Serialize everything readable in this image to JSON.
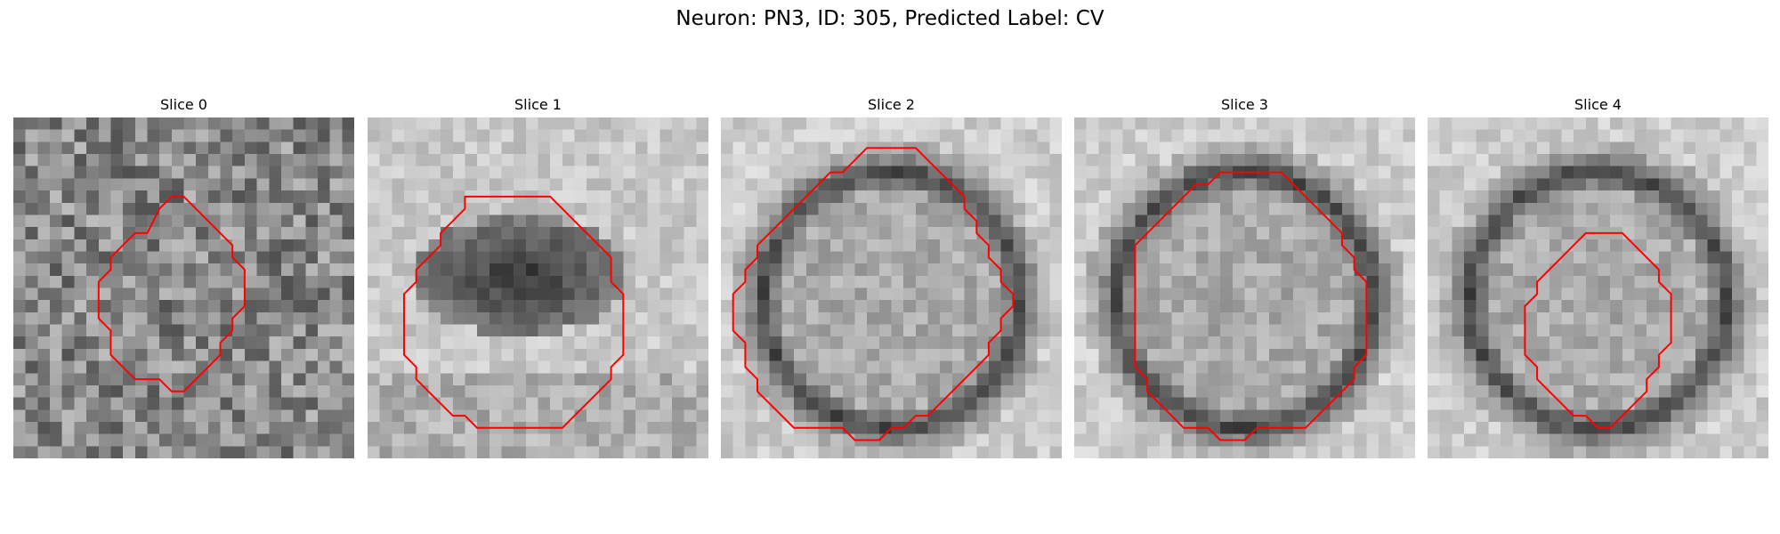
{
  "figure": {
    "title": "Neuron: PN3, ID: 305, Predicted Label: CV"
  },
  "panels": [
    {
      "title": "Slice 0",
      "seed": 11,
      "pattern": "noise",
      "contour": [
        [
          12.5,
          6
        ],
        [
          13.5,
          6
        ],
        [
          14.5,
          7
        ],
        [
          15.5,
          8
        ],
        [
          16.5,
          9
        ],
        [
          17.5,
          10
        ],
        [
          17.5,
          11
        ],
        [
          18.5,
          12
        ],
        [
          18.5,
          13
        ],
        [
          18.5,
          14
        ],
        [
          18.5,
          15
        ],
        [
          17.5,
          16
        ],
        [
          17.5,
          17
        ],
        [
          16.5,
          18
        ],
        [
          16.5,
          19
        ],
        [
          15.5,
          20
        ],
        [
          14.5,
          21
        ],
        [
          13.5,
          22
        ],
        [
          12.5,
          22
        ],
        [
          11.5,
          21
        ],
        [
          10.5,
          21
        ],
        [
          9.5,
          21
        ],
        [
          8.5,
          20
        ],
        [
          7.5,
          19
        ],
        [
          7.5,
          18
        ],
        [
          7.5,
          17
        ],
        [
          6.5,
          16
        ],
        [
          6.5,
          15
        ],
        [
          6.5,
          14
        ],
        [
          6.5,
          13
        ],
        [
          7.5,
          12
        ],
        [
          7.5,
          11
        ],
        [
          8.5,
          10
        ],
        [
          9.5,
          9
        ],
        [
          10.5,
          9
        ],
        [
          11.5,
          7
        ]
      ]
    },
    {
      "title": "Slice 1",
      "seed": 23,
      "pattern": "blob",
      "contour": [
        [
          7.5,
          6
        ],
        [
          14.5,
          6
        ],
        [
          15.5,
          7
        ],
        [
          16.5,
          8
        ],
        [
          17.5,
          9
        ],
        [
          18.5,
          10
        ],
        [
          19.5,
          11
        ],
        [
          19.5,
          12
        ],
        [
          19.5,
          13
        ],
        [
          20.5,
          14
        ],
        [
          20.5,
          15
        ],
        [
          20.5,
          16
        ],
        [
          20.5,
          17
        ],
        [
          20.5,
          18
        ],
        [
          20.5,
          19
        ],
        [
          19.5,
          20
        ],
        [
          19.5,
          21
        ],
        [
          18.5,
          22
        ],
        [
          17.5,
          23
        ],
        [
          16.5,
          24
        ],
        [
          15.5,
          25
        ],
        [
          8.5,
          25
        ],
        [
          7.5,
          24
        ],
        [
          6.5,
          24
        ],
        [
          5.5,
          23
        ],
        [
          4.5,
          22
        ],
        [
          3.5,
          21
        ],
        [
          3.5,
          20
        ],
        [
          2.5,
          19
        ],
        [
          2.5,
          18
        ],
        [
          2.5,
          17
        ],
        [
          2.5,
          16
        ],
        [
          2.5,
          15
        ],
        [
          2.5,
          14
        ],
        [
          3.5,
          13
        ],
        [
          3.5,
          12
        ],
        [
          4.5,
          11
        ],
        [
          5.5,
          10
        ],
        [
          5.5,
          9
        ],
        [
          6.5,
          8
        ],
        [
          7.5,
          7
        ]
      ]
    },
    {
      "title": "Slice 2",
      "seed": 37,
      "pattern": "ring",
      "contour": [
        [
          11.5,
          2
        ],
        [
          15.5,
          2
        ],
        [
          16.5,
          3
        ],
        [
          17.5,
          4
        ],
        [
          18.5,
          5
        ],
        [
          19.5,
          6
        ],
        [
          19.5,
          7
        ],
        [
          20.5,
          8
        ],
        [
          20.5,
          9
        ],
        [
          21.5,
          10
        ],
        [
          21.5,
          11
        ],
        [
          22.5,
          12
        ],
        [
          22.5,
          13
        ],
        [
          23.5,
          14
        ],
        [
          23.5,
          15
        ],
        [
          22.5,
          16
        ],
        [
          22.5,
          17
        ],
        [
          21.5,
          18
        ],
        [
          21.5,
          19
        ],
        [
          20.5,
          20
        ],
        [
          19.5,
          21
        ],
        [
          18.5,
          22
        ],
        [
          17.5,
          23
        ],
        [
          16.5,
          24
        ],
        [
          15.5,
          24
        ],
        [
          14.5,
          25
        ],
        [
          13.5,
          25
        ],
        [
          12.5,
          26
        ],
        [
          10.5,
          26
        ],
        [
          9.5,
          25
        ],
        [
          5.5,
          25
        ],
        [
          4.5,
          24
        ],
        [
          3.5,
          23
        ],
        [
          2.5,
          22
        ],
        [
          2.5,
          21
        ],
        [
          1.5,
          20
        ],
        [
          1.5,
          19
        ],
        [
          1.5,
          18
        ],
        [
          0.5,
          17
        ],
        [
          0.5,
          16
        ],
        [
          0.5,
          15
        ],
        [
          0.5,
          14
        ],
        [
          1.5,
          13
        ],
        [
          1.5,
          12
        ],
        [
          2.5,
          11
        ],
        [
          2.5,
          10
        ],
        [
          3.5,
          9
        ],
        [
          4.5,
          8
        ],
        [
          5.5,
          7
        ],
        [
          6.5,
          6
        ],
        [
          7.5,
          5
        ],
        [
          8.5,
          4
        ],
        [
          9.5,
          4
        ],
        [
          10.5,
          3
        ]
      ]
    },
    {
      "title": "Slice 3",
      "seed": 53,
      "pattern": "ring",
      "contour": [
        [
          11.5,
          4
        ],
        [
          16.5,
          4
        ],
        [
          17.5,
          5
        ],
        [
          18.5,
          6
        ],
        [
          19.5,
          7
        ],
        [
          20.5,
          8
        ],
        [
          21.5,
          9
        ],
        [
          21.5,
          10
        ],
        [
          22.5,
          11
        ],
        [
          22.5,
          12
        ],
        [
          23.5,
          13
        ],
        [
          23.5,
          14
        ],
        [
          23.5,
          15
        ],
        [
          23.5,
          16
        ],
        [
          23.5,
          17
        ],
        [
          23.5,
          18
        ],
        [
          23.5,
          19
        ],
        [
          22.5,
          20
        ],
        [
          22.5,
          21
        ],
        [
          21.5,
          22
        ],
        [
          20.5,
          23
        ],
        [
          19.5,
          24
        ],
        [
          18.5,
          25
        ],
        [
          14.5,
          25
        ],
        [
          13.5,
          26
        ],
        [
          11.5,
          26
        ],
        [
          10.5,
          25
        ],
        [
          8.5,
          25
        ],
        [
          7.5,
          24
        ],
        [
          6.5,
          23
        ],
        [
          5.5,
          22
        ],
        [
          5.5,
          21
        ],
        [
          4.5,
          20
        ],
        [
          4.5,
          19
        ],
        [
          4.5,
          18
        ],
        [
          4.5,
          17
        ],
        [
          4.5,
          16
        ],
        [
          4.5,
          15
        ],
        [
          4.5,
          14
        ],
        [
          4.5,
          13
        ],
        [
          4.5,
          12
        ],
        [
          4.5,
          11
        ],
        [
          4.5,
          10
        ],
        [
          5.5,
          9
        ],
        [
          6.5,
          8
        ],
        [
          7.5,
          7
        ],
        [
          8.5,
          6
        ],
        [
          9.5,
          5
        ],
        [
          10.5,
          5
        ]
      ]
    },
    {
      "title": "Slice 4",
      "seed": 71,
      "pattern": "ring",
      "contour": [
        [
          12.5,
          9
        ],
        [
          15.5,
          9
        ],
        [
          16.5,
          10
        ],
        [
          17.5,
          11
        ],
        [
          18.5,
          12
        ],
        [
          18.5,
          13
        ],
        [
          19.5,
          14
        ],
        [
          19.5,
          15
        ],
        [
          19.5,
          16
        ],
        [
          19.5,
          17
        ],
        [
          19.5,
          18
        ],
        [
          18.5,
          19
        ],
        [
          18.5,
          20
        ],
        [
          17.5,
          21
        ],
        [
          17.5,
          22
        ],
        [
          16.5,
          23
        ],
        [
          15.5,
          24
        ],
        [
          14.5,
          25
        ],
        [
          13.5,
          25
        ],
        [
          12.5,
          24
        ],
        [
          11.5,
          24
        ],
        [
          10.5,
          23
        ],
        [
          9.5,
          22
        ],
        [
          8.5,
          21
        ],
        [
          8.5,
          20
        ],
        [
          7.5,
          19
        ],
        [
          7.5,
          18
        ],
        [
          7.5,
          17
        ],
        [
          7.5,
          16
        ],
        [
          7.5,
          15
        ],
        [
          8.5,
          14
        ],
        [
          8.5,
          13
        ],
        [
          9.5,
          12
        ],
        [
          10.5,
          11
        ],
        [
          11.5,
          10
        ]
      ]
    }
  ],
  "colors": {
    "contour": "#ff0000",
    "background": "#ffffff",
    "text": "#000000"
  }
}
